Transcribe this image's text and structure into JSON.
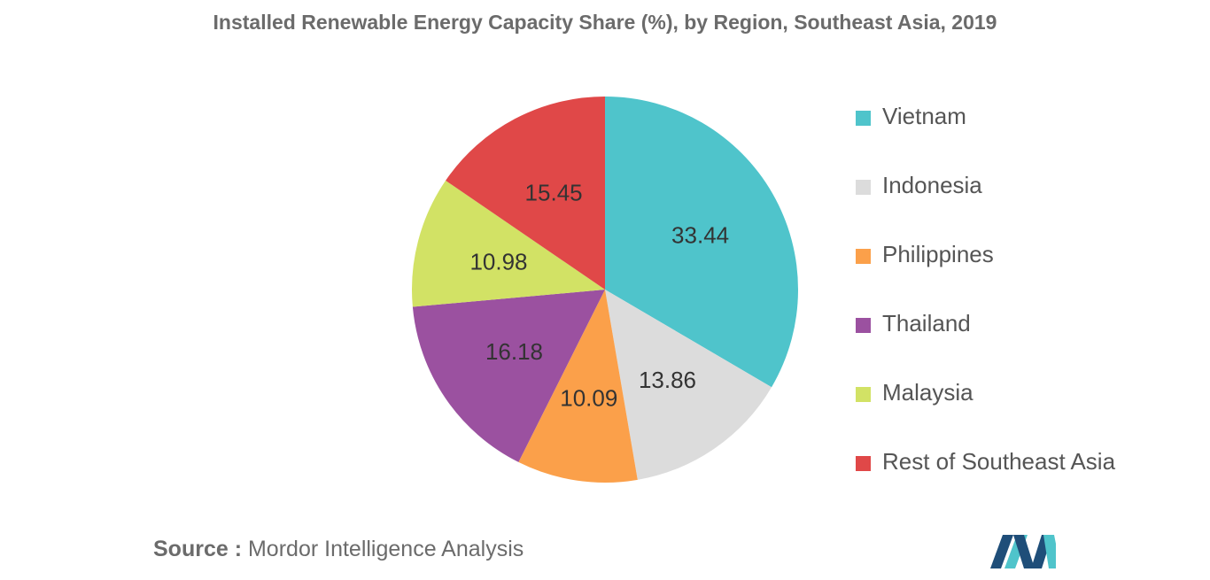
{
  "chart_data": {
    "type": "pie",
    "title": "Installed Renewable Energy Capacity Share (%), by Region, Southeast Asia, 2019",
    "categories": [
      "Vietnam",
      "Indonesia",
      "Philippines",
      "Thailand",
      "Malaysia",
      "Rest of Southeast Asia"
    ],
    "values": [
      33.44,
      13.86,
      10.09,
      16.18,
      10.98,
      15.45
    ],
    "value_labels": [
      "33.44",
      "13.86",
      "10.09",
      "16.18",
      "10.98",
      "15.45"
    ],
    "colors": [
      "#4fc4cb",
      "#dcdcdc",
      "#fba04a",
      "#9b51a0",
      "#d2e265",
      "#e04848"
    ],
    "legend_position": "right",
    "start": "top",
    "direction": "clockwise"
  },
  "source": {
    "label": "Source :",
    "text": "Mordor Intelligence Analysis"
  },
  "logo": {
    "icon": "mordor-intelligence-logo-icon",
    "colors": [
      "#1f4e79",
      "#4fc4cb"
    ]
  }
}
